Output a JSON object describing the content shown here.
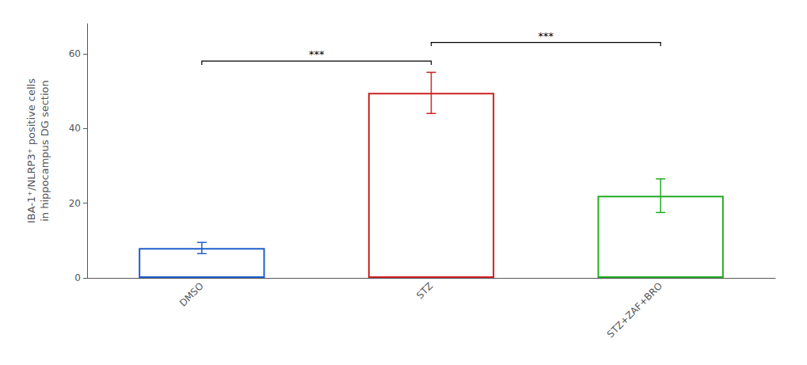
{
  "chart_data": {
    "type": "bar",
    "categories": [
      "DMSO",
      "STZ",
      "STZ+ZAF+BRO"
    ],
    "values": [
      8.0,
      49.5,
      22.0
    ],
    "errors": [
      1.5,
      5.5,
      4.5
    ],
    "colors": [
      "#1f5ecc",
      "#cc2222",
      "#22aa22"
    ],
    "ylabel": "IBA-1⁺/NLRP3⁺ positive cells\nin hippocampus DG section",
    "ylim": [
      0,
      68
    ],
    "yticks": [
      0,
      20,
      40,
      60
    ],
    "grid": false,
    "annotations": [
      {
        "text": "***",
        "x1": "DMSO",
        "x2": "STZ",
        "y": 57
      },
      {
        "text": "***",
        "x1": "STZ",
        "x2": "STZ+ZAF+BRO",
        "y": 62
      }
    ]
  }
}
